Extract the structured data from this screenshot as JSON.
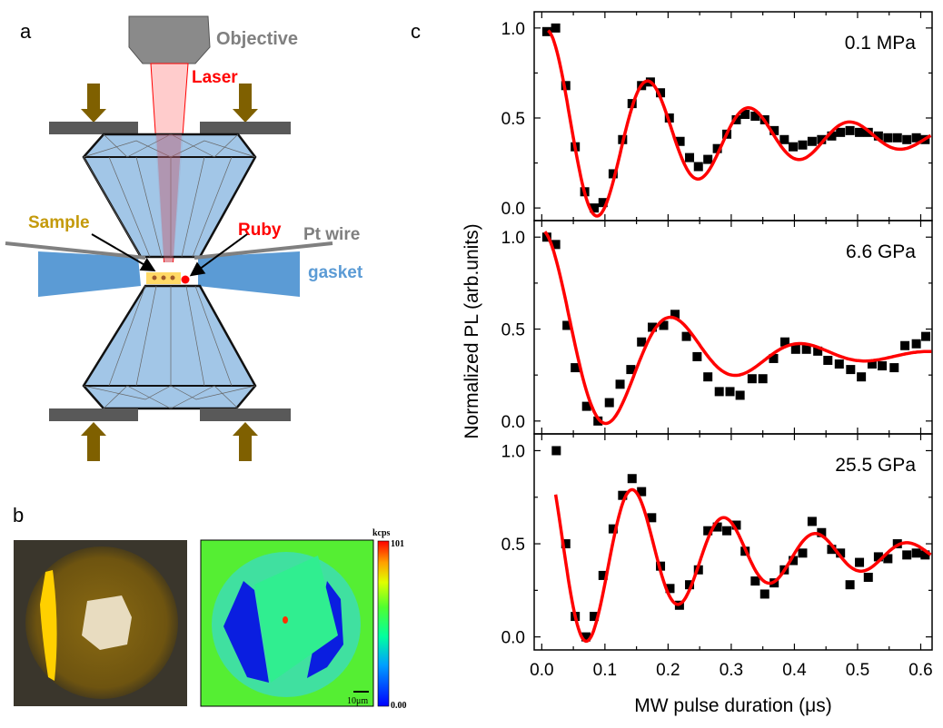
{
  "panel_a": {
    "letter": "a",
    "labels": {
      "objective": "Objective",
      "laser": "Laser",
      "sample": "Sample",
      "ruby": "Ruby",
      "pt_wire": "Pt wire",
      "gasket": "gasket"
    },
    "colors": {
      "objective": "#808080",
      "laser": "#ff0000",
      "sample": "#c49a0b",
      "ruby": "#ff0000",
      "pt_wire": "#7f7f7f",
      "gasket": "#5b9bd5",
      "diamond": "#9dc3e6",
      "arrow": "#7f6000",
      "plate": "#595959"
    }
  },
  "panel_b": {
    "letter": "b",
    "colorbar": {
      "unit": "kcps",
      "max": "101",
      "min": "0.00"
    },
    "scale_bar": "10μm"
  },
  "panel_c": {
    "letter": "c"
  },
  "chart_data": {
    "type": "scatter",
    "xlabel": "MW pulse duration (μs)",
    "ylabel": "Normalized PL (arb.units)",
    "xlim": [
      -0.012,
      0.618
    ],
    "xticks": [
      "0.0",
      "0.1",
      "0.2",
      "0.3",
      "0.4",
      "0.5",
      "0.6"
    ],
    "yticks": [
      "0.0",
      "0.5",
      "1.0"
    ],
    "marker_color": "#000000",
    "fit_color": "#ff0000",
    "panels": [
      {
        "label": "0.1 MPa",
        "ylim": [
          -0.07,
          1.09
        ],
        "x": [
          0.008,
          0.022,
          0.038,
          0.053,
          0.068,
          0.083,
          0.097,
          0.113,
          0.128,
          0.143,
          0.158,
          0.172,
          0.188,
          0.202,
          0.219,
          0.234,
          0.248,
          0.263,
          0.278,
          0.293,
          0.308,
          0.322,
          0.338,
          0.353,
          0.368,
          0.384,
          0.398,
          0.413,
          0.428,
          0.443,
          0.459,
          0.473,
          0.488,
          0.503,
          0.517,
          0.533,
          0.548,
          0.563,
          0.578,
          0.593,
          0.607
        ],
        "y": [
          0.98,
          1.0,
          0.68,
          0.34,
          0.09,
          0.0,
          0.03,
          0.19,
          0.38,
          0.58,
          0.68,
          0.7,
          0.64,
          0.5,
          0.37,
          0.28,
          0.23,
          0.27,
          0.33,
          0.41,
          0.49,
          0.52,
          0.51,
          0.49,
          0.43,
          0.38,
          0.34,
          0.35,
          0.37,
          0.38,
          0.4,
          0.42,
          0.43,
          0.42,
          0.42,
          0.4,
          0.39,
          0.39,
          0.38,
          0.39,
          0.38
        ]
      },
      {
        "label": "6.6 GPa",
        "ylim": [
          -0.07,
          1.09
        ],
        "x": [
          0.008,
          0.022,
          0.04,
          0.053,
          0.071,
          0.089,
          0.107,
          0.124,
          0.141,
          0.158,
          0.175,
          0.193,
          0.211,
          0.229,
          0.246,
          0.263,
          0.281,
          0.298,
          0.314,
          0.333,
          0.35,
          0.367,
          0.385,
          0.402,
          0.419,
          0.437,
          0.453,
          0.471,
          0.489,
          0.506,
          0.523,
          0.539,
          0.558,
          0.575,
          0.593,
          0.608
        ],
        "y": [
          1.0,
          0.96,
          0.52,
          0.29,
          0.08,
          0.0,
          0.1,
          0.2,
          0.28,
          0.43,
          0.51,
          0.52,
          0.58,
          0.46,
          0.35,
          0.24,
          0.16,
          0.16,
          0.14,
          0.23,
          0.23,
          0.34,
          0.43,
          0.39,
          0.39,
          0.38,
          0.33,
          0.31,
          0.28,
          0.24,
          0.31,
          0.3,
          0.29,
          0.41,
          0.42,
          0.46
        ]
      },
      {
        "label": "25.5 GPa",
        "ylim": [
          -0.07,
          1.09
        ],
        "x": [
          0.023,
          0.038,
          0.053,
          0.07,
          0.083,
          0.097,
          0.113,
          0.128,
          0.143,
          0.158,
          0.174,
          0.188,
          0.203,
          0.218,
          0.234,
          0.248,
          0.263,
          0.278,
          0.293,
          0.308,
          0.322,
          0.338,
          0.353,
          0.368,
          0.384,
          0.398,
          0.413,
          0.428,
          0.443,
          0.459,
          0.473,
          0.488,
          0.503,
          0.517,
          0.533,
          0.548,
          0.563,
          0.578,
          0.593,
          0.607
        ],
        "y": [
          1.0,
          0.5,
          0.11,
          0.0,
          0.11,
          0.33,
          0.58,
          0.76,
          0.85,
          0.78,
          0.64,
          0.38,
          0.26,
          0.17,
          0.28,
          0.36,
          0.57,
          0.59,
          0.57,
          0.6,
          0.46,
          0.3,
          0.23,
          0.29,
          0.36,
          0.41,
          0.45,
          0.62,
          0.56,
          0.47,
          0.45,
          0.28,
          0.4,
          0.32,
          0.43,
          0.42,
          0.5,
          0.44,
          0.45,
          0.44
        ]
      }
    ]
  }
}
